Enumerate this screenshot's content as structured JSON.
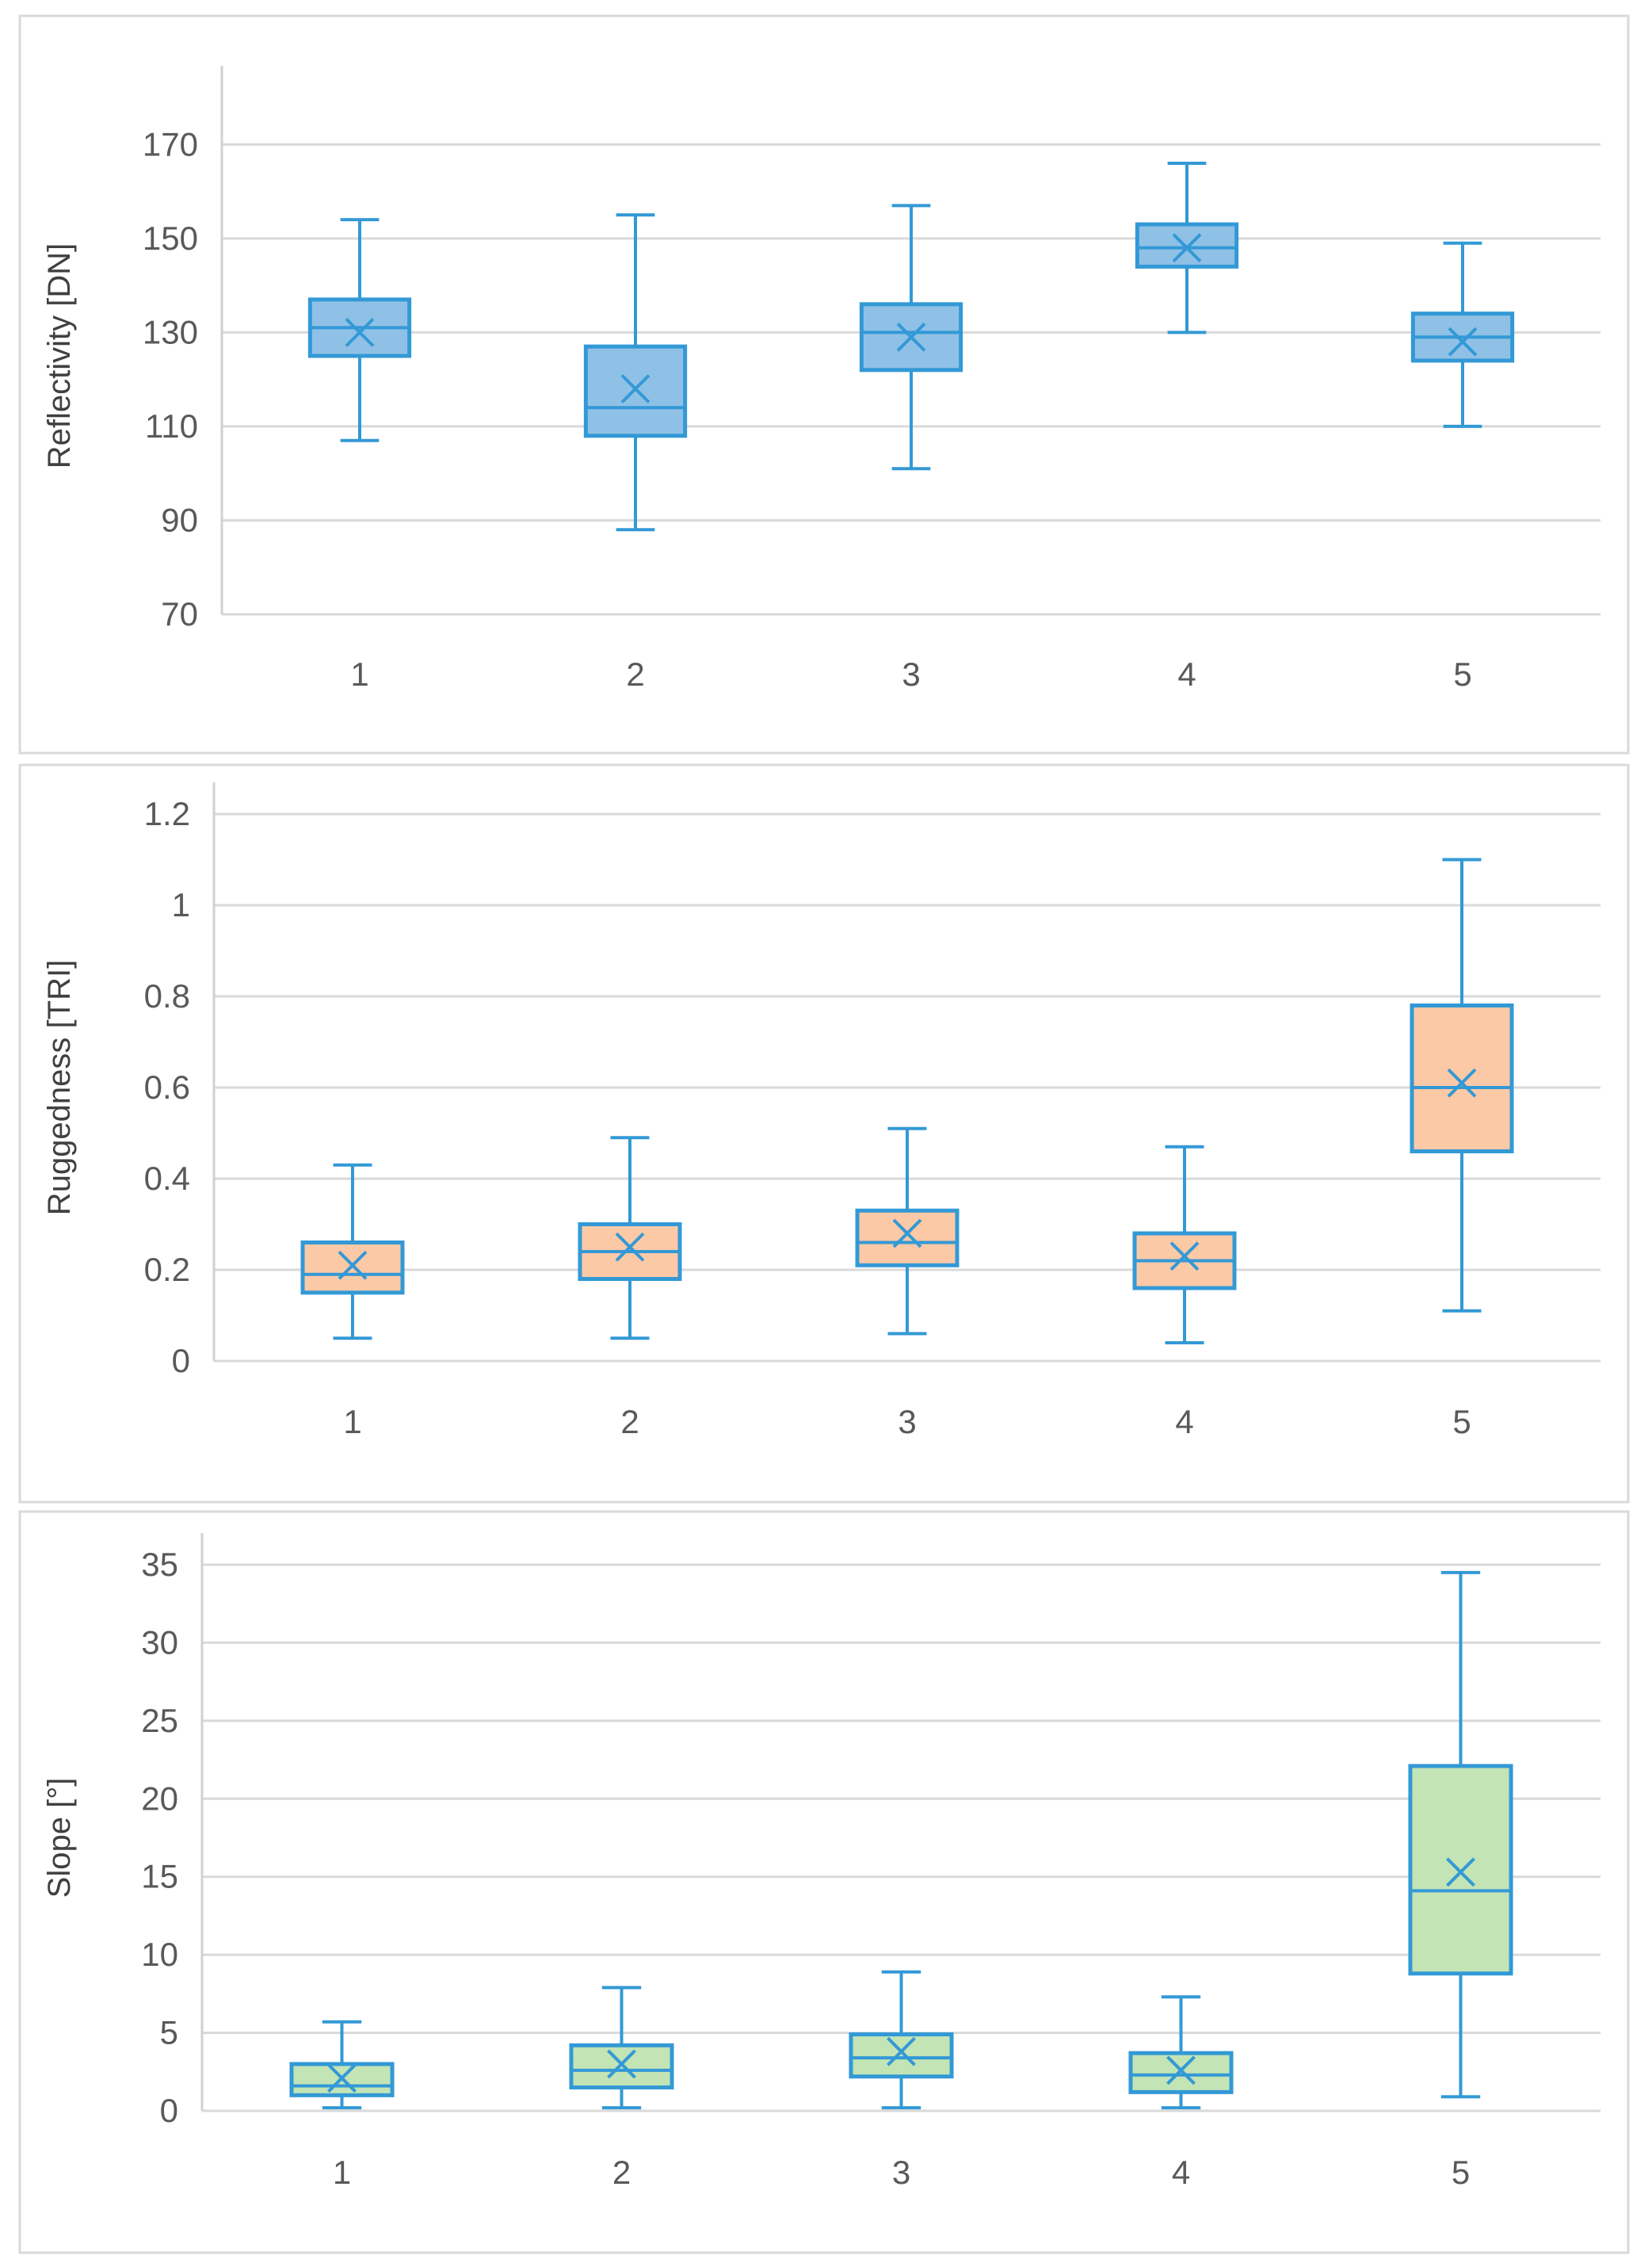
{
  "chart_data": [
    {
      "type": "box",
      "ylabel": "Reflectivity [DN]",
      "categories": [
        "1",
        "2",
        "3",
        "4",
        "5"
      ],
      "ylim": [
        70,
        180
      ],
      "yticks": [
        70,
        90,
        110,
        130,
        150,
        170
      ],
      "fill_color": "#8fc1e6",
      "boxes": [
        {
          "min": 107,
          "q1": 125,
          "median": 131,
          "q3": 137,
          "max": 154,
          "mean": 130
        },
        {
          "min": 88,
          "q1": 108,
          "median": 114,
          "q3": 127,
          "max": 155,
          "mean": 118
        },
        {
          "min": 101,
          "q1": 122,
          "median": 130,
          "q3": 136,
          "max": 157,
          "mean": 129
        },
        {
          "min": 130,
          "q1": 144,
          "median": 148,
          "q3": 153,
          "max": 166,
          "mean": 148
        },
        {
          "min": 110,
          "q1": 124,
          "median": 129,
          "q3": 134,
          "max": 149,
          "mean": 128
        }
      ]
    },
    {
      "type": "box",
      "ylabel": "Ruggedness [TRI]",
      "categories": [
        "1",
        "2",
        "3",
        "4",
        "5"
      ],
      "ylim": [
        0,
        1.2
      ],
      "yticks": [
        0,
        0.2,
        0.4,
        0.6,
        0.8,
        1,
        1.2
      ],
      "fill_color": "#fcc9a6",
      "boxes": [
        {
          "min": 0.05,
          "q1": 0.15,
          "median": 0.19,
          "q3": 0.26,
          "max": 0.43,
          "mean": 0.21
        },
        {
          "min": 0.05,
          "q1": 0.18,
          "median": 0.24,
          "q3": 0.3,
          "max": 0.49,
          "mean": 0.25
        },
        {
          "min": 0.06,
          "q1": 0.21,
          "median": 0.26,
          "q3": 0.33,
          "max": 0.51,
          "mean": 0.28
        },
        {
          "min": 0.04,
          "q1": 0.16,
          "median": 0.22,
          "q3": 0.28,
          "max": 0.47,
          "mean": 0.23
        },
        {
          "min": 0.11,
          "q1": 0.46,
          "median": 0.6,
          "q3": 0.78,
          "max": 1.1,
          "mean": 0.61
        }
      ]
    },
    {
      "type": "box",
      "ylabel": "Slope [°]",
      "categories": [
        "1",
        "2",
        "3",
        "4",
        "5"
      ],
      "ylim": [
        0,
        35
      ],
      "yticks": [
        0,
        5,
        10,
        15,
        20,
        25,
        30,
        35
      ],
      "fill_color": "#c3e4b5",
      "boxes": [
        {
          "min": 0.2,
          "q1": 1.0,
          "median": 1.6,
          "q3": 3.0,
          "max": 5.7,
          "mean": 2.1
        },
        {
          "min": 0.2,
          "q1": 1.5,
          "median": 2.6,
          "q3": 4.2,
          "max": 7.9,
          "mean": 3.0
        },
        {
          "min": 0.2,
          "q1": 2.2,
          "median": 3.4,
          "q3": 4.9,
          "max": 8.9,
          "mean": 3.8
        },
        {
          "min": 0.2,
          "q1": 1.2,
          "median": 2.3,
          "q3": 3.7,
          "max": 7.3,
          "mean": 2.6
        },
        {
          "min": 0.9,
          "q1": 8.8,
          "median": 14.1,
          "q3": 22.1,
          "max": 34.5,
          "mean": 15.3
        }
      ]
    }
  ]
}
